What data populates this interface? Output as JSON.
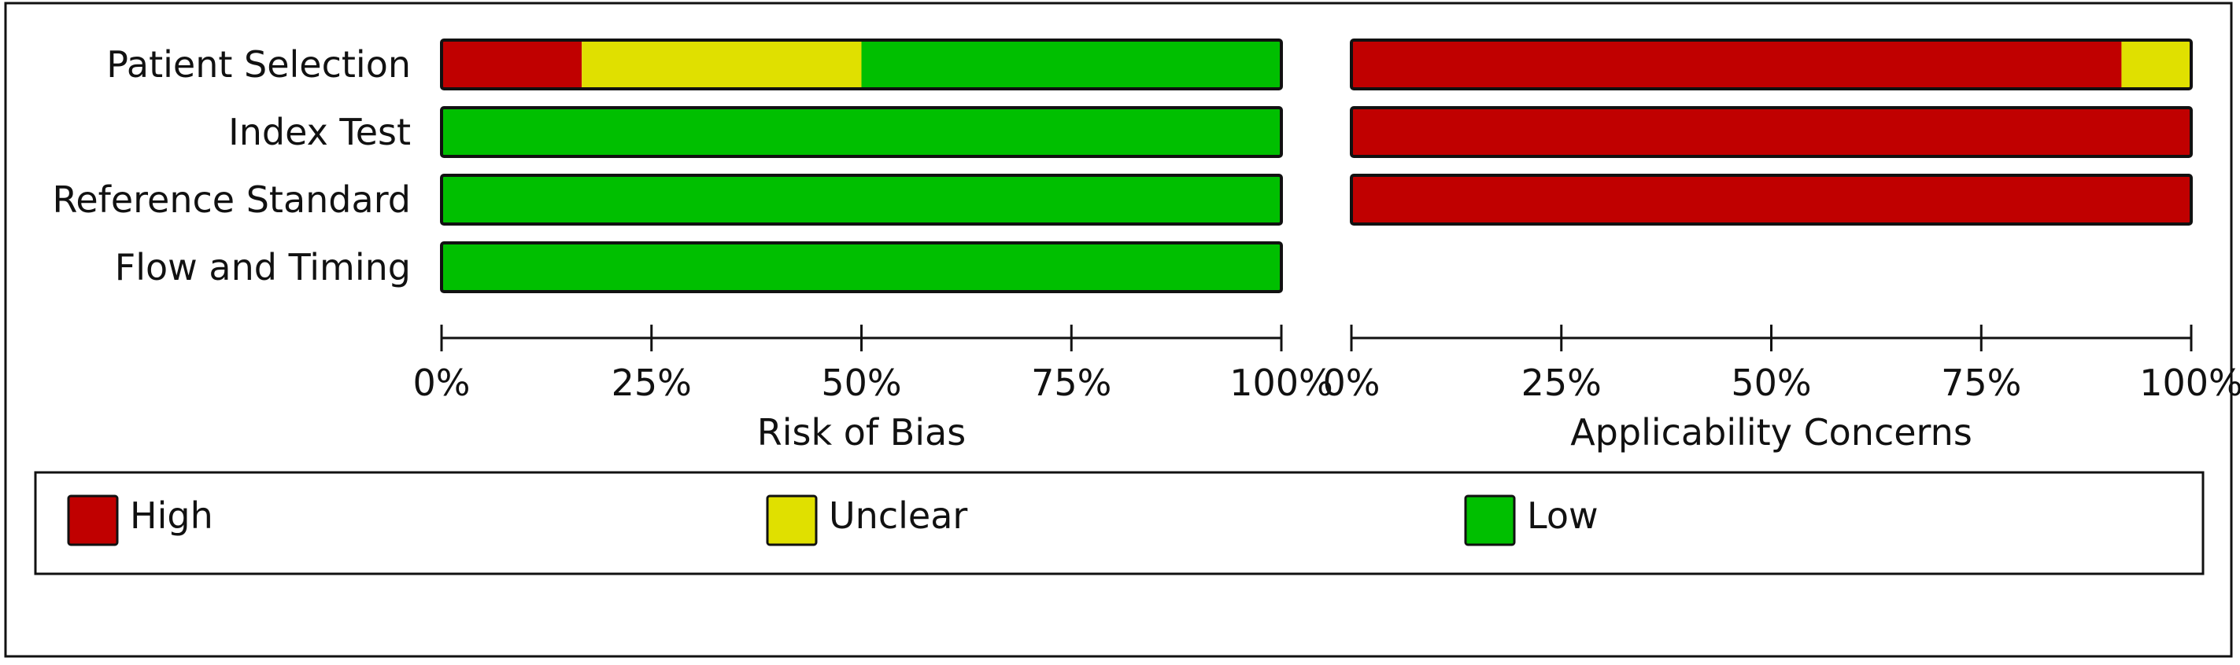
{
  "colors": {
    "High": "#c00000",
    "Unclear": "#e0e000",
    "Low": "#00bf00"
  },
  "chart_data": [
    {
      "type": "bar",
      "orientation": "horizontal-stacked-percent",
      "title": "Risk of Bias",
      "categories": [
        "Patient Selection",
        "Index Test",
        "Reference Standard",
        "Flow and Timing"
      ],
      "series": [
        {
          "name": "High",
          "values": [
            16.7,
            0,
            0,
            0
          ]
        },
        {
          "name": "Unclear",
          "values": [
            33.3,
            0,
            0,
            0
          ]
        },
        {
          "name": "Low",
          "values": [
            50,
            100,
            100,
            100
          ]
        }
      ],
      "xlim": [
        0,
        100
      ],
      "ticks": [
        "0%",
        "25%",
        "50%",
        "75%",
        "100%"
      ]
    },
    {
      "type": "bar",
      "orientation": "horizontal-stacked-percent",
      "title": "Applicability Concerns",
      "categories": [
        "Patient Selection",
        "Index Test",
        "Reference Standard"
      ],
      "series": [
        {
          "name": "High",
          "values": [
            91.7,
            100,
            100
          ]
        },
        {
          "name": "Unclear",
          "values": [
            8.3,
            0,
            0
          ]
        },
        {
          "name": "Low",
          "values": [
            0,
            0,
            0
          ]
        }
      ],
      "xlim": [
        0,
        100
      ],
      "ticks": [
        "0%",
        "25%",
        "50%",
        "75%",
        "100%"
      ]
    }
  ],
  "legend": {
    "items": [
      "High",
      "Unclear",
      "Low"
    ],
    "placement": "bottom"
  }
}
